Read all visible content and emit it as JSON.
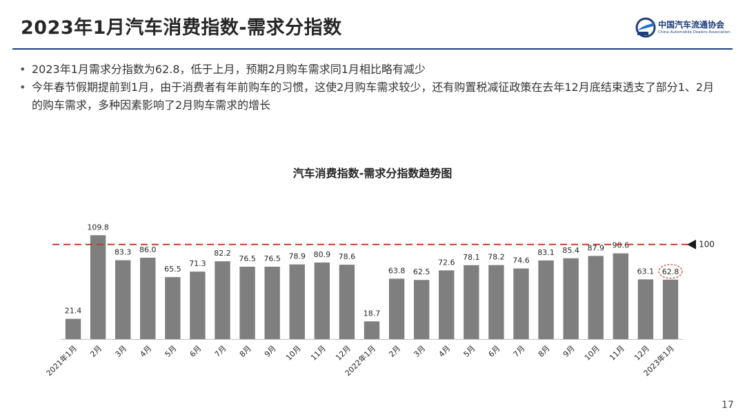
{
  "slide": {
    "title": "2023年1月汽车消费指数-需求分指数",
    "page_number": "17"
  },
  "logo": {
    "name_cn": "中国汽车流通协会",
    "name_en": "China Automobile Dealers Association",
    "brand_color": "#1f3e7c"
  },
  "bullets": [
    "2023年1月需求分指数为62.8，低于上月，预期2月购车需求同1月相比略有减少",
    "今年春节假期提前到1月，由于消费者有年前购车的习惯，这使2月购车需求较少，还有购置税减征政策在去年12月底结束透支了部分1、2月的购车需求，多种因素影响了2月购车需求的增长"
  ],
  "chart_data": {
    "type": "bar",
    "title": "汽车消费指数-需求分指数趋势图",
    "categories": [
      "2021年1月",
      "2月",
      "3月",
      "4月",
      "5月",
      "6月",
      "7月",
      "8月",
      "9月",
      "10月",
      "11月",
      "12月",
      "2022年1月",
      "2月",
      "3月",
      "4月",
      "5月",
      "6月",
      "7月",
      "8月",
      "9月",
      "10月",
      "11月",
      "12月",
      "2023年1月"
    ],
    "values": [
      21.4,
      109.8,
      83.3,
      86.0,
      65.5,
      71.3,
      82.2,
      76.5,
      76.5,
      78.9,
      80.9,
      78.6,
      18.7,
      63.8,
      62.5,
      72.6,
      78.1,
      78.2,
      74.6,
      83.1,
      85.4,
      87.9,
      90.6,
      63.1,
      62.8
    ],
    "value_labels": [
      "21.4",
      "109.8",
      "83.3",
      "86.0",
      "65.5",
      "71.3",
      "82.2",
      "76.5",
      "76.5",
      "78.9",
      "80.9",
      "78.6",
      "18.7",
      "63.8",
      "62.5",
      "72.6",
      "78.1",
      "78.2",
      "74.6",
      "83.1",
      "85.4",
      "87.9",
      "90.6",
      "63.1",
      "62.8"
    ],
    "ylim": [
      0,
      110
    ],
    "reference_line": {
      "value": 100,
      "label": "100",
      "color": "#c0392b",
      "style": "dashed"
    },
    "highlight_index": 24,
    "highlight_color": "#c0392b",
    "bar_color": "#7f7f7f",
    "grid": false,
    "legend": "none"
  }
}
